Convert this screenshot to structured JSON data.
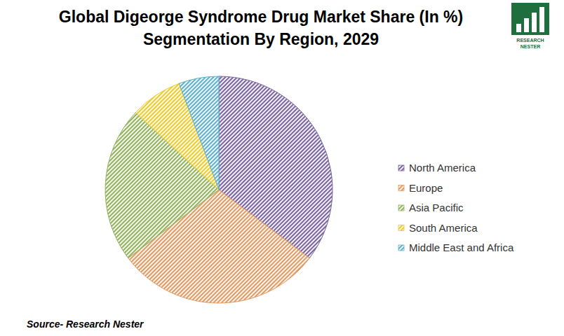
{
  "chart_data": {
    "type": "pie",
    "title": "Global Digeorge Syndrome Drug Market Share (In %)",
    "subtitle": "Segmentation By Region, 2029",
    "categories": [
      "North America",
      "Europe",
      "Asia Pacific",
      "South America",
      "Middle East and Africa"
    ],
    "values": [
      35.3,
      29.4,
      22.2,
      7.4,
      5.7
    ],
    "colors": [
      "#7b65a0",
      "#e09a62",
      "#92b25c",
      "#eccb2c",
      "#5fb0cc"
    ],
    "legend": "right",
    "annotations": [
      "Source- Research Nester"
    ],
    "logo_text": "RESEARCH NESTER"
  }
}
